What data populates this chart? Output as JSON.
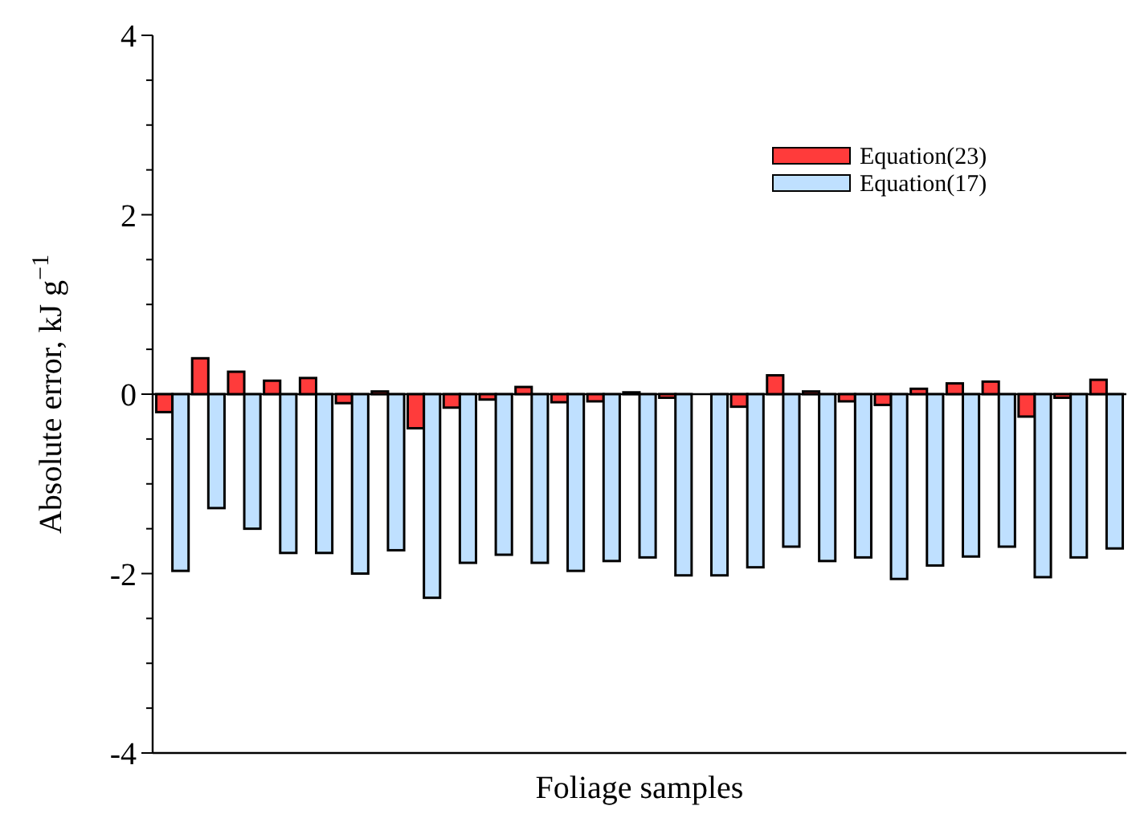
{
  "chart_data": {
    "type": "bar",
    "xlabel": "Foliage samples",
    "ylabel": "Absolute error, kJ g$^{−1}$",
    "categories": [
      null,
      null,
      null,
      null,
      null,
      null,
      null,
      null,
      null,
      null,
      null,
      null,
      null,
      null,
      null,
      null,
      null,
      null,
      null,
      null,
      null,
      null,
      null,
      null,
      null,
      null,
      null
    ],
    "series": [
      {
        "name": "Equation(23)",
        "color": "#ff3b3b",
        "values": [
          -0.2,
          0.4,
          0.25,
          0.15,
          0.18,
          -0.1,
          0.03,
          -0.38,
          -0.15,
          -0.06,
          0.08,
          -0.09,
          -0.08,
          0.02,
          -0.04,
          0,
          -0.14,
          0.21,
          0.03,
          -0.08,
          -0.12,
          0.06,
          0.12,
          0.14,
          -0.25,
          -0.04,
          0.16
        ]
      },
      {
        "name": "Equation(17)",
        "color": "#bfe0ff",
        "values": [
          -1.97,
          -1.27,
          -1.5,
          -1.77,
          -1.77,
          -2.0,
          -1.74,
          -2.27,
          -1.88,
          -1.79,
          -1.88,
          -1.97,
          -1.86,
          -1.82,
          -2.02,
          -2.02,
          -1.93,
          -1.7,
          -1.86,
          -1.82,
          -2.06,
          -1.91,
          -1.81,
          -1.7,
          -2.04,
          -1.82,
          -1.72
        ]
      }
    ],
    "ylim": [
      -4,
      4
    ],
    "yticks": [
      -4,
      {
        "value": -3.5,
        "label": null
      },
      {
        "value": -3,
        "label": null
      },
      {
        "value": -2.5,
        "label": null
      },
      -2,
      {
        "value": -1.5,
        "label": null
      },
      {
        "value": -1,
        "label": null
      },
      {
        "value": -0.5,
        "label": null
      },
      0,
      {
        "value": 0.5,
        "label": null
      },
      {
        "value": 1,
        "label": null
      },
      {
        "value": 1.5,
        "label": null
      },
      2,
      {
        "value": 2.5,
        "label": null
      },
      {
        "value": 3,
        "label": null
      },
      {
        "value": 3.5,
        "label": null
      },
      4
    ],
    "ref_lines": [
      {
        "axis": "y",
        "value": 0,
        "color": "#000000"
      }
    ],
    "tick_labels": "y",
    "grid": false,
    "legend": "top right"
  }
}
